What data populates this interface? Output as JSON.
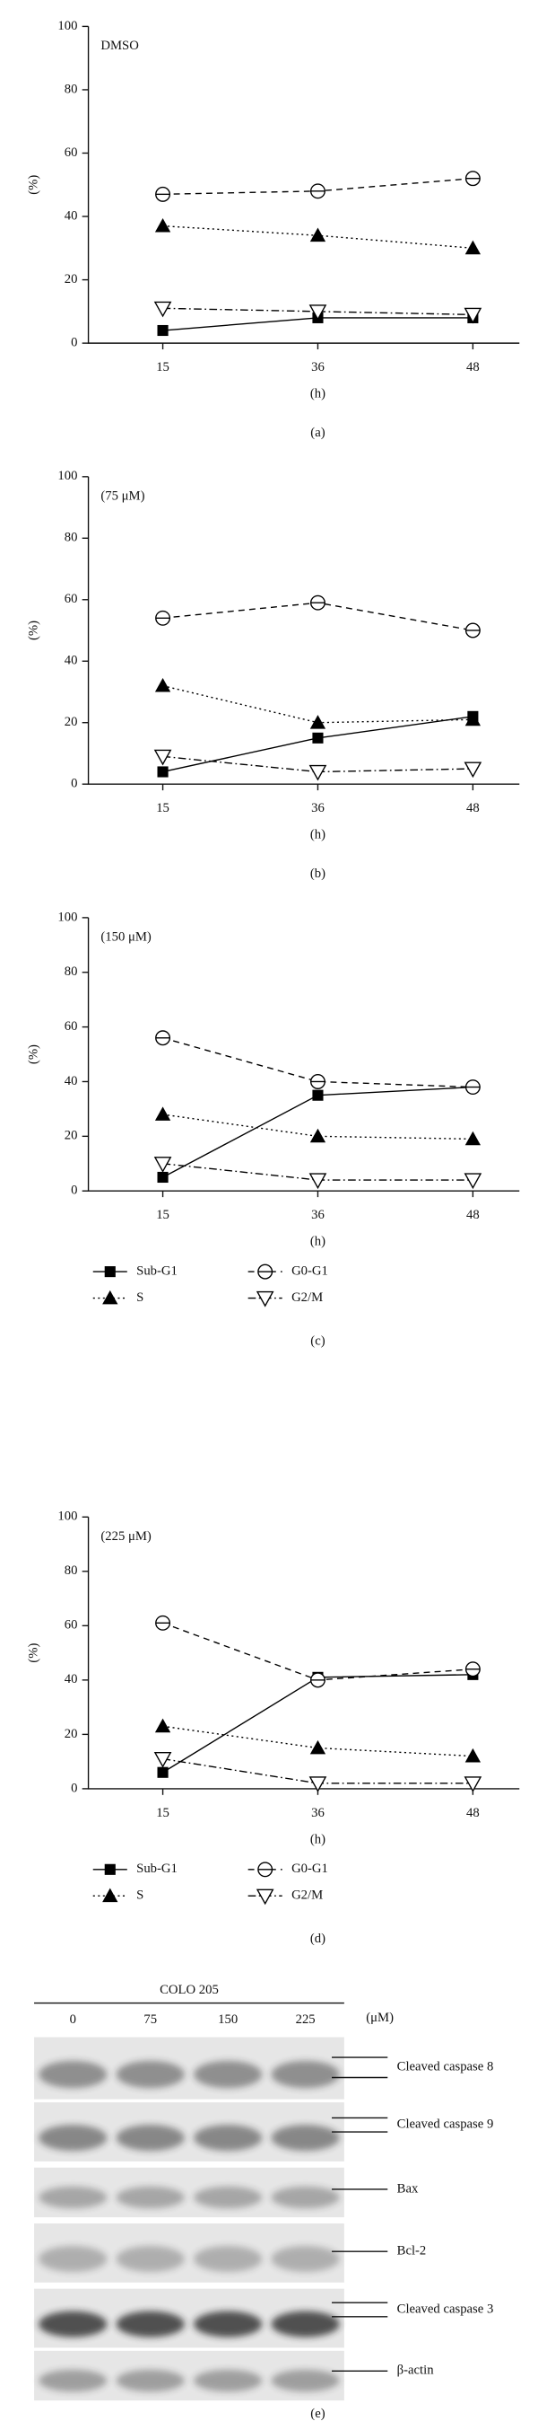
{
  "chart_data": [
    {
      "type": "line",
      "annotation": "DMSO",
      "panel_label": "(a)",
      "y_label": "(%)",
      "x_label": "(h)",
      "categories": [
        "15",
        "36",
        "48"
      ],
      "ylim": [
        0,
        100
      ],
      "yticks": [
        0,
        20,
        40,
        60,
        80,
        100
      ],
      "series": [
        {
          "name": "Sub-G1",
          "color": "#000000",
          "values": [
            4,
            8,
            8
          ]
        },
        {
          "name": "G0-G1",
          "color": "#000000",
          "values": [
            47,
            48,
            52
          ]
        },
        {
          "name": "S",
          "color": "#000000",
          "values": [
            37,
            34,
            30
          ]
        },
        {
          "name": "G2/M",
          "color": "#000000",
          "values": [
            11,
            10,
            9
          ]
        }
      ]
    },
    {
      "type": "line",
      "annotation": "(75 μM)",
      "panel_label": "(b)",
      "y_label": "(%)",
      "x_label": "(h)",
      "categories": [
        "15",
        "36",
        "48"
      ],
      "ylim": [
        0,
        100
      ],
      "yticks": [
        0,
        20,
        40,
        60,
        80,
        100
      ],
      "series": [
        {
          "name": "Sub-G1",
          "color": "#000000",
          "values": [
            4,
            15,
            22
          ]
        },
        {
          "name": "G0-G1",
          "color": "#000000",
          "values": [
            54,
            59,
            50
          ]
        },
        {
          "name": "S",
          "color": "#000000",
          "values": [
            32,
            20,
            21
          ]
        },
        {
          "name": "G2/M",
          "color": "#000000",
          "values": [
            9,
            4,
            5
          ]
        }
      ]
    },
    {
      "type": "line",
      "annotation": "(150 μM)",
      "panel_label": "(c)",
      "y_label": "(%)",
      "x_label": "(h)",
      "legend": "bottom",
      "categories": [
        "15",
        "36",
        "48"
      ],
      "ylim": [
        0,
        100
      ],
      "yticks": [
        0,
        20,
        40,
        60,
        80,
        100
      ],
      "series": [
        {
          "name": "Sub-G1",
          "color": "#000000",
          "values": [
            5,
            35,
            38
          ]
        },
        {
          "name": "G0-G1",
          "color": "#000000",
          "values": [
            56,
            40,
            38
          ]
        },
        {
          "name": "S",
          "color": "#000000",
          "values": [
            28,
            20,
            19
          ]
        },
        {
          "name": "G2/M",
          "color": "#000000",
          "values": [
            10,
            4,
            4
          ]
        }
      ]
    },
    {
      "type": "line",
      "annotation": "(225 μM)",
      "panel_label": "(d)",
      "y_label": "(%)",
      "x_label": "(h)",
      "legend": "bottom",
      "categories": [
        "15",
        "36",
        "48"
      ],
      "ylim": [
        0,
        100
      ],
      "yticks": [
        0,
        20,
        40,
        60,
        80,
        100
      ],
      "series": [
        {
          "name": "Sub-G1",
          "color": "#000000",
          "values": [
            6,
            41,
            42
          ]
        },
        {
          "name": "G0-G1",
          "color": "#000000",
          "values": [
            61,
            40,
            44
          ]
        },
        {
          "name": "S",
          "color": "#000000",
          "values": [
            23,
            15,
            12
          ]
        },
        {
          "name": "G2/M",
          "color": "#000000",
          "values": [
            11,
            2,
            2
          ]
        }
      ]
    }
  ],
  "blot": {
    "title": "COLO 205",
    "unit": "(μM)",
    "lanes": [
      "0",
      "75",
      "150",
      "225"
    ],
    "bands": [
      "Cleaved caspase 8",
      "Cleaved caspase 9",
      "Bax",
      "Bcl-2",
      "Cleaved caspase 3",
      "β-actin"
    ],
    "panel_label": "(e)"
  }
}
